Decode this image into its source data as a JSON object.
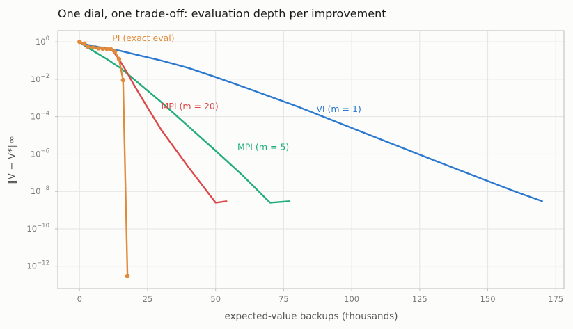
{
  "chart_data": {
    "type": "line",
    "title": "One dial, one trade-off: evaluation depth per improvement",
    "xlabel": "expected-value backups (thousands)",
    "ylabel": "‖V − V*‖∞",
    "xlim": [
      -8,
      178
    ],
    "ylim_log10": [
      -13.2,
      0.6
    ],
    "yscale": "log",
    "grid": true,
    "x_ticks": [
      0,
      25,
      50,
      75,
      100,
      125,
      150,
      175
    ],
    "x_tick_labels": [
      "0",
      "25",
      "50",
      "75",
      "100",
      "125",
      "150",
      "175"
    ],
    "y_ticks_log10": [
      0,
      -2,
      -4,
      -6,
      -8,
      -10,
      -12
    ],
    "y_tick_labels": [
      {
        "base": "10",
        "exp": "0"
      },
      {
        "base": "10",
        "exp": "−2"
      },
      {
        "base": "10",
        "exp": "−4"
      },
      {
        "base": "10",
        "exp": "−6"
      },
      {
        "base": "10",
        "exp": "−8"
      },
      {
        "base": "10",
        "exp": "−10"
      },
      {
        "base": "10",
        "exp": "−12"
      }
    ],
    "series": [
      {
        "name": "VI (m = 1)",
        "color": "#2b78d0",
        "markers": false,
        "x": [
          0,
          2,
          5,
          10,
          15,
          20,
          30,
          40,
          50,
          60,
          80,
          100,
          120,
          140,
          160,
          170
        ],
        "y": [
          1,
          0.75,
          0.6,
          0.45,
          0.33,
          0.22,
          0.1,
          0.04,
          0.013,
          0.004,
          0.00035,
          2.5e-05,
          1.8e-06,
          1.3e-07,
          1e-08,
          3e-09
        ]
      },
      {
        "name": "MPI (m = 5)",
        "color": "#1fad7b",
        "markers": false,
        "x": [
          0,
          2,
          4,
          7,
          10,
          15,
          20,
          30,
          40,
          50,
          60,
          70,
          77
        ],
        "y": [
          1,
          0.6,
          0.4,
          0.22,
          0.12,
          0.04,
          0.01,
          0.0006,
          3e-05,
          1.5e-06,
          7e-08,
          2.5e-09,
          3e-09
        ]
      },
      {
        "name": "MPI (m = 20)",
        "color": "#dc4848",
        "markers": false,
        "x": [
          0,
          3,
          7,
          10,
          12,
          14,
          17,
          20,
          25,
          30,
          40,
          50,
          54
        ],
        "y": [
          1,
          0.55,
          0.45,
          0.4,
          0.35,
          0.15,
          0.03,
          0.005,
          0.0003,
          2e-05,
          2e-07,
          2.5e-09,
          3e-09
        ]
      },
      {
        "name": "PI (exact eval)",
        "color": "#e08a3a",
        "markers": true,
        "x": [
          0,
          1.8,
          3,
          5,
          7,
          8.5,
          10,
          11.5,
          13,
          14.5,
          16,
          17.6
        ],
        "y": [
          1,
          0.8,
          0.55,
          0.5,
          0.45,
          0.43,
          0.42,
          0.4,
          0.3,
          0.12,
          0.009,
          3e-13
        ]
      }
    ],
    "annotations": [
      {
        "text": "PI (exact eval)",
        "series": 3,
        "x": 12,
        "y_log10": 0.05
      },
      {
        "text": "VI (m = 1)",
        "series": 0,
        "x": 87,
        "y_log10": -3.75
      },
      {
        "text": "MPI (m = 20)",
        "series": 2,
        "x": 30,
        "y_log10": -3.6
      },
      {
        "text": "MPI (m = 5)",
        "series": 1,
        "x": 58,
        "y_log10": -5.78
      }
    ]
  }
}
